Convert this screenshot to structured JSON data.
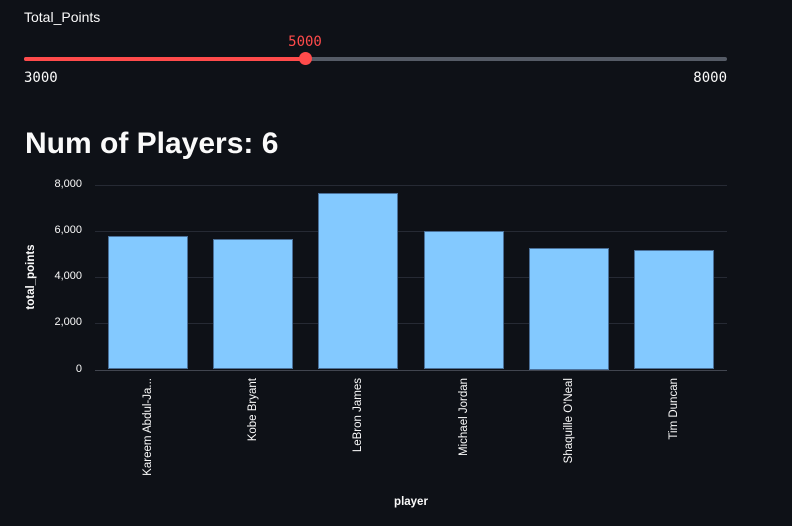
{
  "slider": {
    "label": "Total_Points",
    "value_label": "5000",
    "min_label": "3000",
    "max_label": "8000",
    "min": 3000,
    "max": 8000,
    "value": 5000,
    "fraction": 0.4,
    "accent_color": "#ff4b4b"
  },
  "heading": {
    "text": "Num of Players: 6"
  },
  "chart_data": {
    "type": "bar",
    "title": "",
    "categories": [
      "Kareem Abdul-Ja...",
      "Kobe Bryant",
      "LeBron James",
      "Michael Jordan",
      "Shaquille O'Neal",
      "Tim Duncan"
    ],
    "values": [
      5762,
      5640,
      7631,
      5987,
      5250,
      5172
    ],
    "xlabel": "player",
    "ylabel": "total_points",
    "ylim": [
      0,
      8000
    ],
    "yticks": [
      {
        "value": 0,
        "label": "0"
      },
      {
        "value": 2000,
        "label": "2,000"
      },
      {
        "value": 4000,
        "label": "4,000"
      },
      {
        "value": 6000,
        "label": "6,000"
      },
      {
        "value": 8000,
        "label": "8,000"
      }
    ],
    "grid": true,
    "legend": "none",
    "bar_color": "#83c9ff",
    "bar_border_color": "#4a7099",
    "background_color": "#0e1117"
  }
}
